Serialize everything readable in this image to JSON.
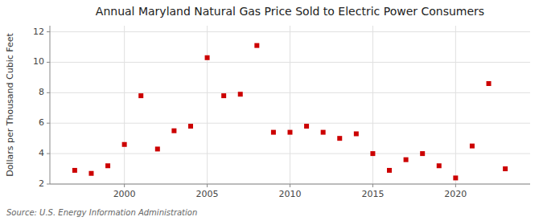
{
  "chart_data": {
    "type": "scatter",
    "title": "Annual Maryland Natural Gas Price Sold to Electric Power Consumers",
    "ylabel": "Dollars per Thousand Cubic Feet",
    "source": "Source: U.S. Energy Information Administration",
    "x": [
      1997,
      1998,
      1999,
      2000,
      2001,
      2002,
      2003,
      2004,
      2005,
      2006,
      2007,
      2008,
      2009,
      2010,
      2011,
      2012,
      2013,
      2014,
      2015,
      2016,
      2017,
      2018,
      2019,
      2020,
      2021,
      2022,
      2023
    ],
    "values": [
      2.9,
      2.7,
      3.2,
      4.6,
      7.8,
      4.3,
      5.5,
      5.8,
      10.3,
      7.8,
      7.9,
      11.1,
      5.4,
      5.4,
      5.8,
      5.4,
      5.0,
      5.3,
      4.0,
      2.9,
      3.6,
      4.0,
      3.2,
      2.4,
      4.5,
      8.6,
      3.0
    ],
    "color": "#cc0000",
    "marker": "square",
    "xlim": [
      1995.5,
      2024.5
    ],
    "ylim": [
      2,
      12.4
    ],
    "xticks": [
      2000,
      2005,
      2010,
      2015,
      2020
    ],
    "yticks": [
      2,
      4,
      6,
      8,
      10,
      12
    ],
    "grid": true
  }
}
